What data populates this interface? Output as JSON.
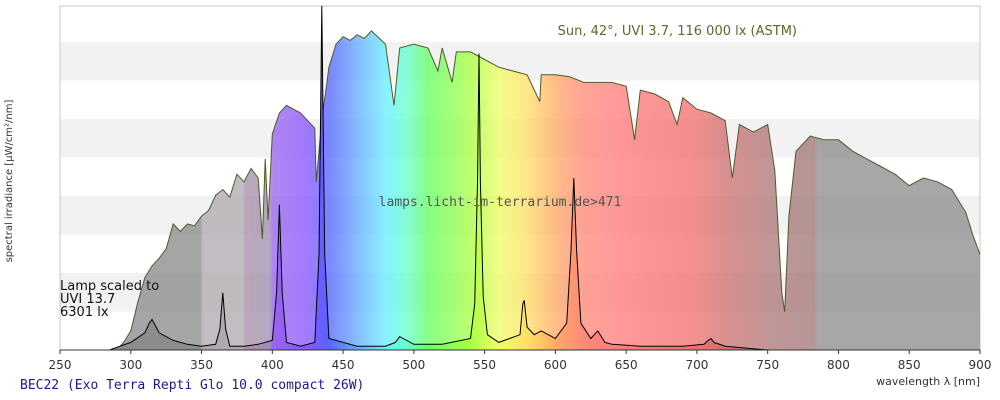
{
  "chart_data": {
    "type": "area",
    "title": "Sun, 42°, UVI 3.7, 116 000 lx (ASTM)",
    "subtitle": "BEC22 (Exo Terra Repti Glo 10.0 compact 26W)",
    "watermark": "lamps.licht-im-terrarium.de>471",
    "xlabel": "wavelength λ [nm]",
    "ylabel": "spectral irradiance [µW/cm²/nm]",
    "xlim": [
      250,
      900
    ],
    "ylim": [
      0,
      180
    ],
    "xticks": [
      "250",
      "300",
      "350",
      "400",
      "450",
      "500",
      "550",
      "600",
      "650",
      "700",
      "750",
      "800",
      "850",
      "900"
    ],
    "grid": "horizontal bands",
    "lamp_note": {
      "line1": "Lamp scaled to",
      "line2": "UVI 13.7",
      "line3": "6301 lx"
    },
    "series": [
      {
        "name": "Sun, 42°, UVI 3.7, 116 000 lx (ASTM)",
        "x": [
          290,
          295,
          300,
          305,
          310,
          315,
          320,
          325,
          330,
          335,
          340,
          345,
          350,
          355,
          360,
          365,
          370,
          375,
          380,
          385,
          390,
          393,
          395,
          397,
          400,
          405,
          410,
          420,
          430,
          431,
          435,
          440,
          445,
          450,
          455,
          460,
          465,
          470,
          480,
          486,
          490,
          500,
          510,
          517,
          520,
          527,
          530,
          540,
          550,
          560,
          570,
          580,
          589,
          590,
          600,
          610,
          620,
          630,
          640,
          650,
          656,
          660,
          670,
          680,
          686,
          690,
          700,
          710,
          720,
          725,
          730,
          740,
          750,
          755,
          760,
          762,
          765,
          770,
          780,
          790,
          800,
          810,
          820,
          830,
          840,
          850,
          860,
          870,
          880,
          890,
          895,
          900
        ],
        "y": [
          0,
          4,
          10,
          25,
          38,
          44,
          48,
          53,
          66,
          62,
          66,
          65,
          70,
          73,
          81,
          84,
          80,
          92,
          88,
          95,
          90,
          58,
          100,
          68,
          113,
          124,
          128,
          124,
          116,
          88,
          120,
          148,
          160,
          164,
          162,
          165,
          163,
          167,
          160,
          128,
          158,
          160,
          158,
          146,
          158,
          140,
          156,
          156,
          152,
          148,
          146,
          144,
          130,
          144,
          144,
          143,
          140,
          140,
          140,
          138,
          110,
          136,
          134,
          130,
          118,
          132,
          126,
          124,
          120,
          90,
          118,
          114,
          118,
          94,
          30,
          20,
          70,
          104,
          112,
          110,
          110,
          104,
          100,
          96,
          92,
          86,
          90,
          88,
          84,
          72,
          60,
          50
        ]
      },
      {
        "name": "BEC22 (Exo Terra Repti Glo 10.0 compact 26W)",
        "x": [
          285,
          300,
          310,
          313,
          315,
          318,
          320,
          330,
          340,
          350,
          360,
          363,
          365,
          367,
          370,
          380,
          390,
          400,
          403,
          405,
          407,
          410,
          420,
          430,
          433,
          435,
          437,
          440,
          460,
          480,
          487,
          490,
          500,
          520,
          540,
          543,
          545,
          546,
          547,
          549,
          552,
          560,
          575,
          577,
          578,
          580,
          585,
          590,
          600,
          608,
          611,
          613,
          615,
          618,
          625,
          630,
          635,
          640,
          660,
          690,
          705,
          708,
          710,
          712,
          720,
          750
        ],
        "y": [
          0,
          4,
          9,
          14,
          16,
          12,
          9,
          5,
          3,
          2,
          3,
          11,
          30,
          11,
          2,
          2,
          3,
          5,
          30,
          76,
          30,
          4,
          2,
          4,
          50,
          180,
          50,
          6,
          2,
          2,
          4,
          7,
          3,
          3,
          6,
          24,
          88,
          155,
          88,
          28,
          8,
          4,
          8,
          24,
          26,
          12,
          8,
          10,
          6,
          14,
          52,
          90,
          52,
          14,
          6,
          10,
          4,
          3,
          2,
          2,
          3,
          5,
          6,
          4,
          2,
          0
        ]
      }
    ],
    "colors": {
      "sun_outline": "#4f5a2a",
      "lamp_outline": "#000000",
      "band": "#f2f2f2",
      "plot_border": "#c8c8c8",
      "axis": "#333333",
      "title_text": "#5a6a2a",
      "subtitle_text": "#1b1b8f",
      "label_text": "#333333"
    }
  }
}
